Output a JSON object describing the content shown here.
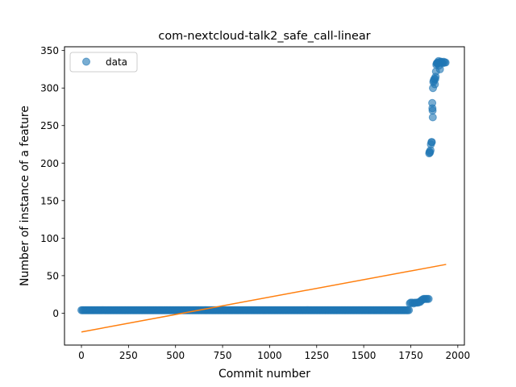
{
  "chart_data": {
    "type": "scatter",
    "title": "com-nextcloud-talk2_safe_call-linear",
    "xlabel": "Commit number",
    "ylabel": "Number of instance of a feature",
    "xlim": [
      -90,
      2035
    ],
    "ylim": [
      -42.5,
      355
    ],
    "xticks": [
      0,
      250,
      500,
      750,
      1000,
      1250,
      1500,
      1750,
      2000
    ],
    "yticks": [
      0,
      50,
      100,
      150,
      200,
      250,
      300,
      350
    ],
    "grid": false,
    "legend": {
      "position": "upper-left",
      "entries": [
        "data"
      ]
    },
    "colors": {
      "data": "#1f77b4",
      "fit": "#ff7f0e"
    },
    "series": [
      {
        "name": "data",
        "kind": "scatter",
        "segments": [
          {
            "x_range": [
              0,
              1745
            ],
            "y": 4
          }
        ],
        "points": [
          [
            1745,
            13
          ],
          [
            1750,
            14
          ],
          [
            1758,
            14
          ],
          [
            1765,
            13
          ],
          [
            1772,
            14
          ],
          [
            1780,
            14
          ],
          [
            1788,
            14
          ],
          [
            1795,
            15
          ],
          [
            1800,
            15
          ],
          [
            1806,
            17
          ],
          [
            1812,
            18
          ],
          [
            1818,
            19
          ],
          [
            1825,
            19
          ],
          [
            1832,
            19
          ],
          [
            1838,
            19
          ],
          [
            1845,
            19
          ],
          [
            1848,
            213
          ],
          [
            1850,
            215
          ],
          [
            1852,
            214
          ],
          [
            1855,
            217
          ],
          [
            1857,
            225
          ],
          [
            1860,
            228
          ],
          [
            1862,
            228
          ],
          [
            1864,
            280
          ],
          [
            1865,
            273
          ],
          [
            1866,
            270
          ],
          [
            1867,
            261
          ],
          [
            1868,
            300
          ],
          [
            1870,
            308
          ],
          [
            1872,
            310
          ],
          [
            1875,
            312
          ],
          [
            1878,
            305
          ],
          [
            1880,
            312
          ],
          [
            1882,
            315
          ],
          [
            1884,
            322
          ],
          [
            1886,
            331
          ],
          [
            1888,
            333
          ],
          [
            1890,
            333
          ],
          [
            1892,
            334
          ],
          [
            1895,
            333
          ],
          [
            1898,
            336
          ],
          [
            1900,
            330
          ],
          [
            1902,
            334
          ],
          [
            1905,
            325
          ],
          [
            1908,
            335
          ],
          [
            1912,
            335
          ],
          [
            1916,
            334
          ],
          [
            1920,
            333
          ],
          [
            1925,
            335
          ],
          [
            1930,
            334
          ],
          [
            1935,
            334
          ]
        ]
      },
      {
        "kind": "line",
        "points": [
          [
            0,
            -25
          ],
          [
            1938,
            65
          ]
        ]
      }
    ]
  }
}
